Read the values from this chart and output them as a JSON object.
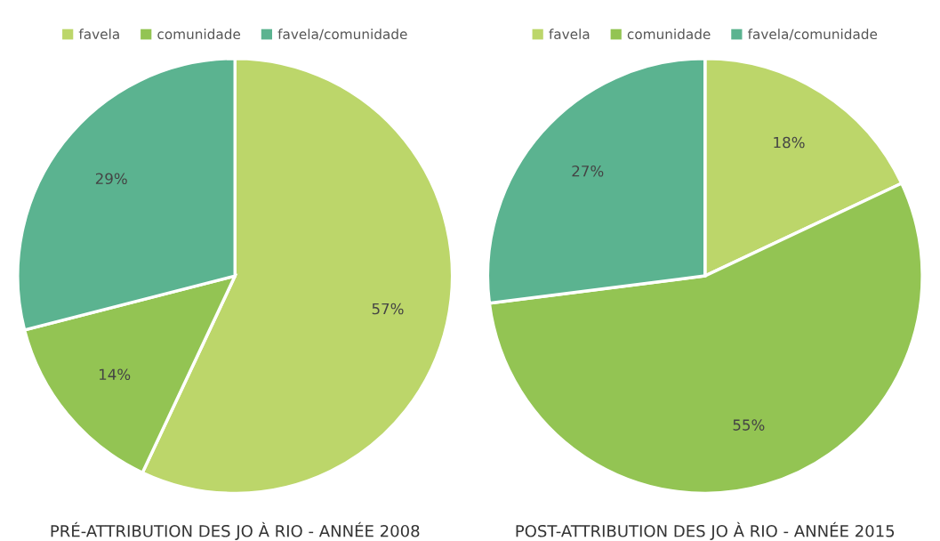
{
  "chart_data": [
    {
      "type": "pie",
      "title": "PRÉ-ATTRIBUTION DES JO À RIO - ANNÉE 2008",
      "categories": [
        "favela",
        "comunidade",
        "favela/comunidade"
      ],
      "values": [
        57,
        14,
        29
      ],
      "value_labels": [
        "57%",
        "14%",
        "29%"
      ],
      "colors": [
        "#bcd66a",
        "#93c453",
        "#5bb390"
      ],
      "legend": "top"
    },
    {
      "type": "pie",
      "title": "POST-ATTRIBUTION DES JO À RIO - ANNÉE 2015",
      "categories": [
        "favela",
        "comunidade",
        "favela/comunidade"
      ],
      "values": [
        18,
        55,
        27
      ],
      "value_labels": [
        "18%",
        "55%",
        "27%"
      ],
      "colors": [
        "#bcd66a",
        "#93c453",
        "#5bb390"
      ],
      "legend": "top"
    }
  ]
}
